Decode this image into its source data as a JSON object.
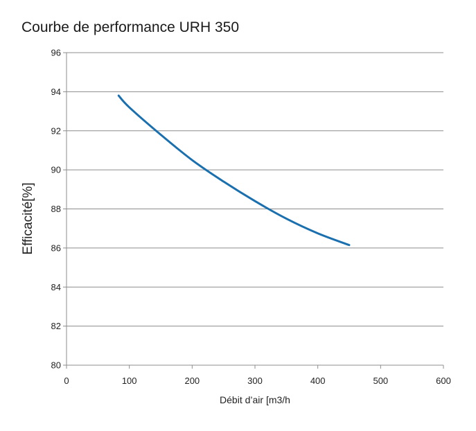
{
  "chart_data": {
    "type": "line",
    "title": "Courbe de performance URH 350",
    "xlabel": "Débit d’air [m3/h",
    "ylabel": "Efficacité[%]",
    "xlim": [
      0,
      600
    ],
    "ylim": [
      80,
      96
    ],
    "x_ticks": [
      "0",
      "100",
      "200",
      "300",
      "400",
      "500",
      "600"
    ],
    "y_ticks": [
      "80",
      "82",
      "84",
      "86",
      "88",
      "90",
      "92",
      "94",
      "96"
    ],
    "grid": "horizontal",
    "legend": "none",
    "series": [
      {
        "x": [
          83,
          100,
          150,
          200,
          250,
          300,
          350,
          400,
          450
        ],
        "y": [
          93.8,
          93.2,
          91.8,
          90.5,
          89.4,
          88.4,
          87.5,
          86.75,
          86.15
        ],
        "color": "#1a6fae"
      }
    ]
  }
}
